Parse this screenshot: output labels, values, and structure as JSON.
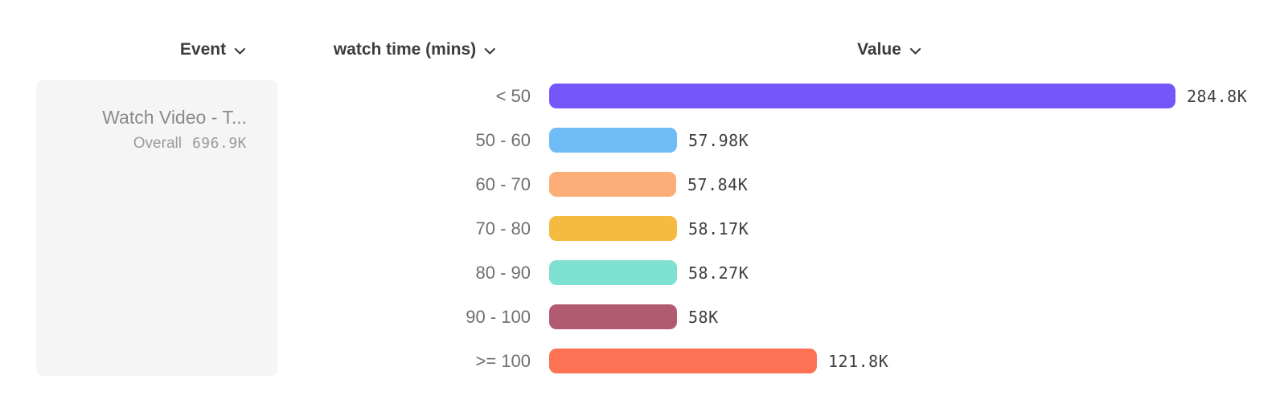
{
  "ui": {
    "columns": {
      "event_label": "Event",
      "breakdown_label": "watch time (mins)",
      "value_label": "Value"
    },
    "event_card": {
      "name": "Watch Video - T...",
      "overall_label": "Overall",
      "overall_value": "696.9K"
    }
  },
  "chart_data": {
    "type": "bar",
    "orientation": "horizontal",
    "title": "",
    "xlabel": "Value",
    "ylabel": "watch time (mins)",
    "event_name": "Watch Video - T...",
    "overall_label": "Overall",
    "overall_value_label": "696.9K",
    "overall_value": 696900,
    "categories": [
      "< 50",
      "50 - 60",
      "60 - 70",
      "70 - 80",
      "80 - 90",
      "90 - 100",
      ">= 100"
    ],
    "values": [
      284800,
      57980,
      57840,
      58170,
      58270,
      58000,
      121800
    ],
    "value_labels": [
      "284.8K",
      "57.98K",
      "57.84K",
      "58.17K",
      "58.27K",
      "58K",
      "121.8K"
    ],
    "bar_colors": [
      "#7456fa",
      "#6fbbf5",
      "#fcae79",
      "#f5ba40",
      "#7ee0d1",
      "#b25a72",
      "#fd7254"
    ],
    "xlim": [
      0,
      284800
    ],
    "grid": false,
    "legend": false
  },
  "icons": {
    "chevron_down": "chevron-down"
  }
}
